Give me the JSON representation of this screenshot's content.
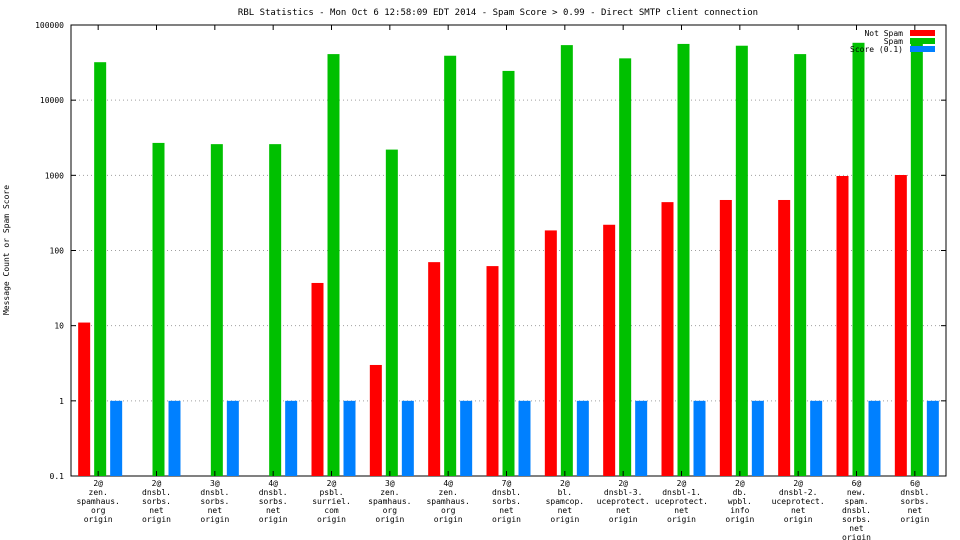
{
  "chart_data": {
    "type": "bar",
    "title": "RBL Statistics - Mon Oct  6 12:58:09 EDT 2014 - Spam Score > 0.99 - Direct SMTP client connection",
    "xlabel": "",
    "ylabel": "Message Count or Spam Score",
    "yscale": "log",
    "ylim": [
      0.1,
      100000
    ],
    "y_ticks": [
      "0.1",
      "1",
      "10",
      "100",
      "1000",
      "10000",
      "100000"
    ],
    "grid": true,
    "legend_position": "top-right",
    "categories": [
      [
        "2@",
        "zen.",
        "spamhaus.",
        "org",
        "origin"
      ],
      [
        "2@",
        "dnsbl.",
        "sorbs.",
        "net",
        "origin"
      ],
      [
        "3@",
        "dnsbl.",
        "sorbs.",
        "net",
        "origin"
      ],
      [
        "4@",
        "dnsbl.",
        "sorbs.",
        "net",
        "origin"
      ],
      [
        "2@",
        "psbl.",
        "surriel.",
        "com",
        "origin"
      ],
      [
        "3@",
        "zen.",
        "spamhaus.",
        "org",
        "origin"
      ],
      [
        "4@",
        "zen.",
        "spamhaus.",
        "org",
        "origin"
      ],
      [
        "7@",
        "dnsbl.",
        "sorbs.",
        "net",
        "origin"
      ],
      [
        "2@",
        "bl.",
        "spamcop.",
        "net",
        "origin"
      ],
      [
        "2@",
        "dnsbl-3.",
        "uceprotect.",
        "net",
        "origin"
      ],
      [
        "2@",
        "dnsbl-1.",
        "uceprotect.",
        "net",
        "origin"
      ],
      [
        "2@",
        "db.",
        "wpbl.",
        "info",
        "origin"
      ],
      [
        "2@",
        "dnsbl-2.",
        "uceprotect.",
        "net",
        "origin"
      ],
      [
        "6@",
        "new.",
        "spam.",
        "dnsbl.",
        "sorbs.",
        "net",
        "origin"
      ],
      [
        "6@",
        "dnsbl.",
        "sorbs.",
        "net",
        "origin"
      ]
    ],
    "series": [
      {
        "name": "Not Spam",
        "color": "#ff0000",
        "values": [
          11,
          null,
          null,
          null,
          37,
          3,
          70,
          62,
          185,
          220,
          440,
          470,
          470,
          980,
          1010
        ]
      },
      {
        "name": "Spam",
        "color": "#00c000",
        "values": [
          32000,
          2700,
          2600,
          2600,
          41000,
          2200,
          39000,
          24500,
          54000,
          36000,
          56000,
          53000,
          41000,
          58000,
          60000
        ]
      },
      {
        "name": "Score (0.1)",
        "color": "#0080ff",
        "values": [
          1,
          1,
          1,
          1,
          1,
          1,
          1,
          1,
          1,
          1,
          1,
          1,
          1,
          1,
          1
        ]
      }
    ]
  }
}
